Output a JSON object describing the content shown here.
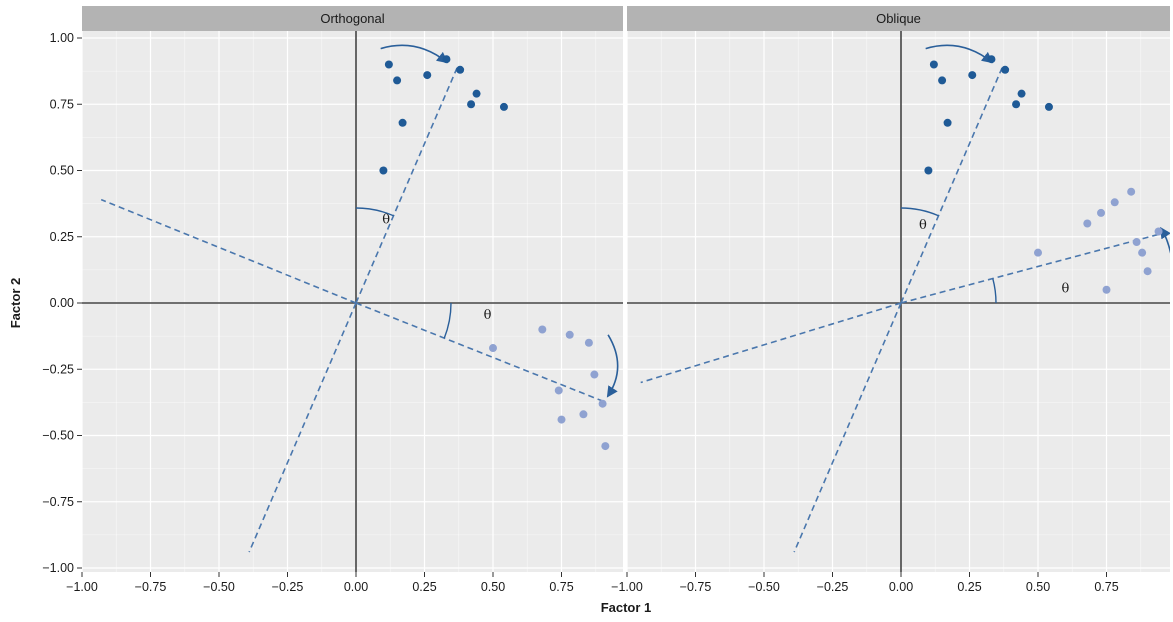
{
  "chart_data": {
    "type": "scatter",
    "xlabel": "Factor 1",
    "ylabel": "Factor 2",
    "xlim": [
      -1.0,
      1.0
    ],
    "ylim": [
      -1.0,
      1.0
    ],
    "x_ticks": [
      -1.0,
      -0.75,
      -0.5,
      -0.25,
      0.0,
      0.25,
      0.5,
      0.75
    ],
    "x_tick_labels": [
      "−1.00",
      "−0.75",
      "−0.50",
      "−0.25",
      "0.00",
      "0.25",
      "0.50",
      "0.75"
    ],
    "y_ticks": [
      1.0,
      0.75,
      0.5,
      0.25,
      0.0,
      -0.25,
      -0.5,
      -0.75,
      -1.0
    ],
    "y_tick_labels": [
      "1.00",
      "0.75",
      "0.50",
      "0.25",
      "0.00",
      "−0.25",
      "−0.50",
      "−0.75",
      "−1.00"
    ],
    "grid": true,
    "colors": {
      "panel_bg": "#ebebeb",
      "grid_major": "#ffffff",
      "strip_bg": "#b3b3b3",
      "dark_point": "#1f5a96",
      "light_point": "#8fa2d1",
      "dashed_axis": "#4a77ad",
      "arrow": "#2a5f9a",
      "axis_line": "#444444"
    },
    "angle_label": "θ",
    "panels": [
      {
        "title": "Orthogonal",
        "series": [
          {
            "color_key": "dark_point",
            "points": [
              [
                0.12,
                0.9
              ],
              [
                0.15,
                0.84
              ],
              [
                0.26,
                0.86
              ],
              [
                0.33,
                0.92
              ],
              [
                0.38,
                0.88
              ],
              [
                0.44,
                0.79
              ],
              [
                0.42,
                0.75
              ],
              [
                0.54,
                0.74
              ],
              [
                0.17,
                0.68
              ],
              [
                0.1,
                0.5
              ]
            ]
          },
          {
            "color_key": "light_point",
            "points": [
              [
                0.5,
                -0.17
              ],
              [
                0.68,
                -0.1
              ],
              [
                0.78,
                -0.12
              ],
              [
                0.85,
                -0.15
              ],
              [
                0.87,
                -0.27
              ],
              [
                0.74,
                -0.33
              ],
              [
                0.9,
                -0.38
              ],
              [
                0.75,
                -0.44
              ],
              [
                0.83,
                -0.42
              ],
              [
                0.91,
                -0.54
              ]
            ]
          }
        ],
        "rotated_axes": [
          {
            "from": [
              0.0,
              0.0
            ],
            "to": [
              0.37,
              0.89
            ]
          },
          {
            "from": [
              0.0,
              0.0
            ],
            "to": [
              -0.39,
              -0.94
            ]
          },
          {
            "from": [
              0.0,
              0.0
            ],
            "to": [
              0.9,
              -0.37
            ]
          },
          {
            "from": [
              0.0,
              0.0
            ],
            "to": [
              -0.93,
              0.39
            ]
          }
        ],
        "theta_labels": [
          [
            0.11,
            0.3
          ],
          [
            0.48,
            -0.06
          ]
        ]
      },
      {
        "title": "Oblique",
        "series": [
          {
            "color_key": "dark_point",
            "points": [
              [
                0.12,
                0.9
              ],
              [
                0.15,
                0.84
              ],
              [
                0.26,
                0.86
              ],
              [
                0.33,
                0.92
              ],
              [
                0.38,
                0.88
              ],
              [
                0.44,
                0.79
              ],
              [
                0.42,
                0.75
              ],
              [
                0.54,
                0.74
              ],
              [
                0.17,
                0.68
              ],
              [
                0.1,
                0.5
              ]
            ]
          },
          {
            "color_key": "light_point",
            "points": [
              [
                0.5,
                0.19
              ],
              [
                0.68,
                0.3
              ],
              [
                0.73,
                0.34
              ],
              [
                0.78,
                0.38
              ],
              [
                0.84,
                0.42
              ],
              [
                0.86,
                0.23
              ],
              [
                0.88,
                0.19
              ],
              [
                0.94,
                0.27
              ],
              [
                0.9,
                0.12
              ],
              [
                0.75,
                0.05
              ]
            ]
          }
        ],
        "rotated_axes": [
          {
            "from": [
              0.0,
              0.0
            ],
            "to": [
              0.37,
              0.89
            ]
          },
          {
            "from": [
              0.0,
              0.0
            ],
            "to": [
              -0.39,
              -0.94
            ]
          },
          {
            "from": [
              0.0,
              0.0
            ],
            "to": [
              0.98,
              0.27
            ]
          },
          {
            "from": [
              0.0,
              0.0
            ],
            "to": [
              -0.95,
              -0.3
            ]
          }
        ],
        "theta_labels": [
          [
            0.08,
            0.28
          ],
          [
            0.6,
            0.04
          ]
        ]
      }
    ]
  }
}
